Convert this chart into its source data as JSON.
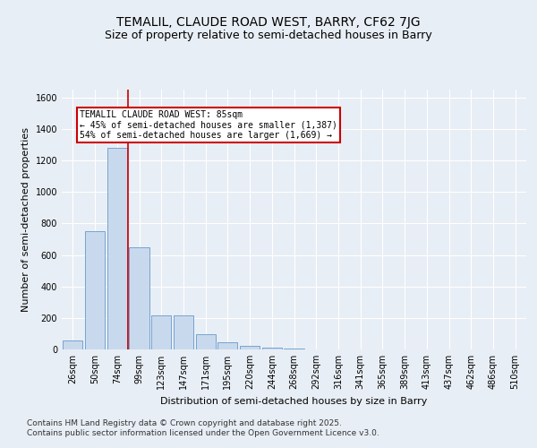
{
  "title1": "TEMALIL, CLAUDE ROAD WEST, BARRY, CF62 7JG",
  "title2": "Size of property relative to semi-detached houses in Barry",
  "xlabel": "Distribution of semi-detached houses by size in Barry",
  "ylabel": "Number of semi-detached properties",
  "categories": [
    "26sqm",
    "50sqm",
    "74sqm",
    "99sqm",
    "123sqm",
    "147sqm",
    "171sqm",
    "195sqm",
    "220sqm",
    "244sqm",
    "268sqm",
    "292sqm",
    "316sqm",
    "341sqm",
    "365sqm",
    "389sqm",
    "413sqm",
    "437sqm",
    "462sqm",
    "486sqm",
    "510sqm"
  ],
  "values": [
    55,
    750,
    1280,
    650,
    215,
    215,
    95,
    45,
    25,
    10,
    5,
    2,
    1,
    0,
    0,
    0,
    0,
    0,
    0,
    0,
    0
  ],
  "bar_color": "#c9d9ed",
  "bar_edge_color": "#6699cc",
  "vline_x_idx": 2.5,
  "vline_color": "#cc0000",
  "annotation_text": "TEMALIL CLAUDE ROAD WEST: 85sqm\n← 45% of semi-detached houses are smaller (1,387)\n54% of semi-detached houses are larger (1,669) →",
  "annotation_box_color": "#ffffff",
  "annotation_box_edge": "#cc0000",
  "ylim": [
    0,
    1650
  ],
  "yticks": [
    0,
    200,
    400,
    600,
    800,
    1000,
    1200,
    1400,
    1600
  ],
  "background_color": "#e8eef5",
  "plot_background": "#e8eef5",
  "footer": "Contains HM Land Registry data © Crown copyright and database right 2025.\nContains public sector information licensed under the Open Government Licence v3.0.",
  "title_fontsize": 10,
  "subtitle_fontsize": 9,
  "label_fontsize": 8,
  "tick_fontsize": 7,
  "footer_fontsize": 6.5
}
